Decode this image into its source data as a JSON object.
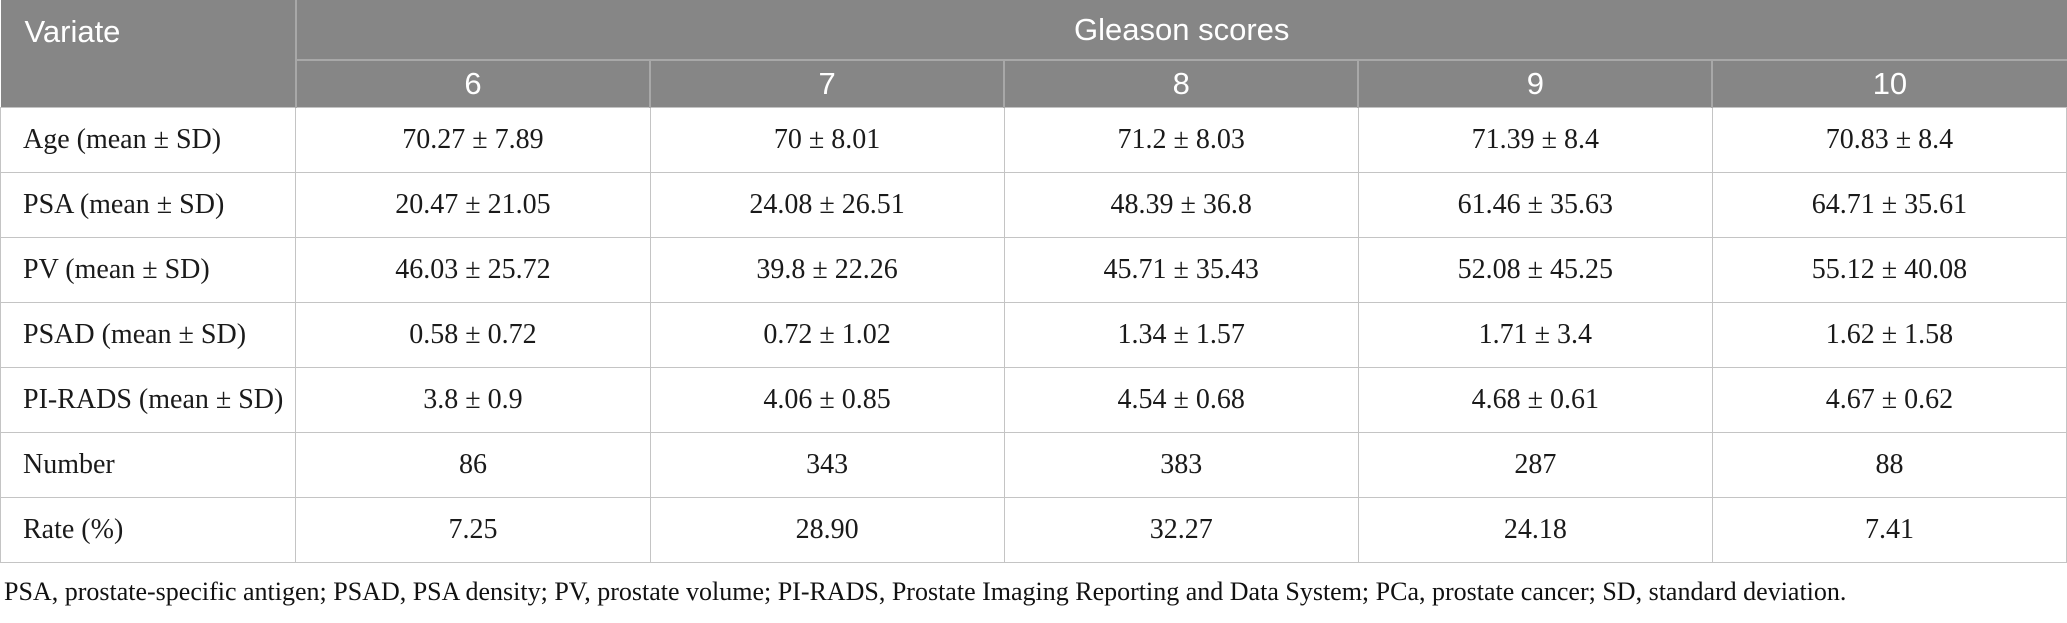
{
  "colors": {
    "header_bg": "#868686",
    "header_text": "#ffffff",
    "header_divider": "#a8a8a8",
    "grid_border": "#c4c4c4",
    "body_text": "#1a1a1a",
    "page_bg": "#ffffff"
  },
  "chart_data": {
    "type": "table",
    "corner_label": "Variate",
    "group_label": "Gleason scores",
    "score_headers": [
      "6",
      "7",
      "8",
      "9",
      "10"
    ],
    "rows": [
      {
        "label": "Age (mean ± SD)",
        "values": [
          "70.27 ± 7.89",
          "70 ± 8.01",
          "71.2 ± 8.03",
          "71.39 ± 8.4",
          "70.83 ± 8.4"
        ]
      },
      {
        "label": "PSA (mean ± SD)",
        "values": [
          "20.47 ± 21.05",
          "24.08 ± 26.51",
          "48.39 ± 36.8",
          "61.46 ± 35.63",
          "64.71 ± 35.61"
        ]
      },
      {
        "label": "PV (mean ± SD)",
        "values": [
          "46.03 ± 25.72",
          "39.8 ± 22.26",
          "45.71 ± 35.43",
          "52.08 ± 45.25",
          "55.12 ± 40.08"
        ]
      },
      {
        "label": "PSAD (mean ± SD)",
        "values": [
          "0.58 ± 0.72",
          "0.72 ± 1.02",
          "1.34 ± 1.57",
          "1.71 ± 3.4",
          "1.62 ± 1.58"
        ]
      },
      {
        "label": "PI-RADS (mean ± SD)",
        "values": [
          "3.8 ± 0.9",
          "4.06 ± 0.85",
          "4.54 ± 0.68",
          "4.68 ± 0.61",
          "4.67 ± 0.62"
        ]
      },
      {
        "label": "Number",
        "values": [
          "86",
          "343",
          "383",
          "287",
          "88"
        ]
      },
      {
        "label": "Rate (%)",
        "values": [
          "7.25",
          "28.90",
          "32.27",
          "24.18",
          "7.41"
        ]
      }
    ]
  },
  "footnote": "PSA, prostate-specific antigen; PSAD, PSA density; PV, prostate volume; PI-RADS, Prostate Imaging Reporting and Data System; PCa, prostate cancer; SD, standard deviation."
}
